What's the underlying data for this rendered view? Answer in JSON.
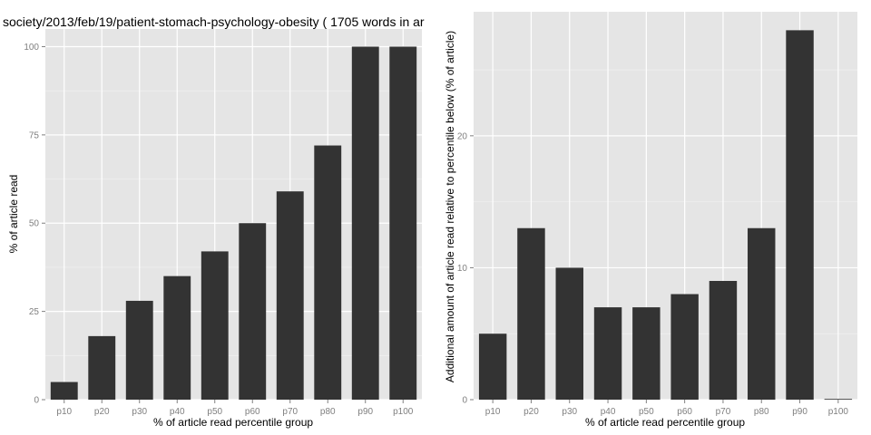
{
  "chart_data": [
    {
      "type": "bar",
      "title": "society/2013/feb/19/patient-stomach-psychology-obesity ( 1705 words in ar",
      "xlabel": "% of article read percentile group",
      "ylabel": "% of article read",
      "categories": [
        "p10",
        "p20",
        "p30",
        "p40",
        "p50",
        "p60",
        "p70",
        "p80",
        "p90",
        "p100"
      ],
      "values": [
        5,
        18,
        28,
        35,
        42,
        50,
        59,
        72,
        100,
        100
      ],
      "ylim": [
        0,
        105
      ],
      "yticks": [
        0,
        25,
        50,
        75,
        100
      ],
      "ytick_labels": [
        "0",
        "25",
        "50",
        "75",
        "100"
      ],
      "grid": true,
      "bar_color": "#333333",
      "panel_color": "#e5e5e5"
    },
    {
      "type": "bar",
      "title": "",
      "xlabel": "% of article read percentile group",
      "ylabel": "Additional amount of article read relative to percentile below (% of article)",
      "categories": [
        "p10",
        "p20",
        "p30",
        "p40",
        "p50",
        "p60",
        "p70",
        "p80",
        "p90",
        "p100"
      ],
      "values": [
        5,
        13,
        10,
        7,
        7,
        8,
        9,
        13,
        28,
        0
      ],
      "ylim": [
        0,
        29.4
      ],
      "yticks": [
        0,
        10,
        20
      ],
      "ytick_labels": [
        "0",
        "10",
        "20"
      ],
      "grid": true,
      "bar_color": "#333333",
      "panel_color": "#e5e5e5"
    }
  ]
}
